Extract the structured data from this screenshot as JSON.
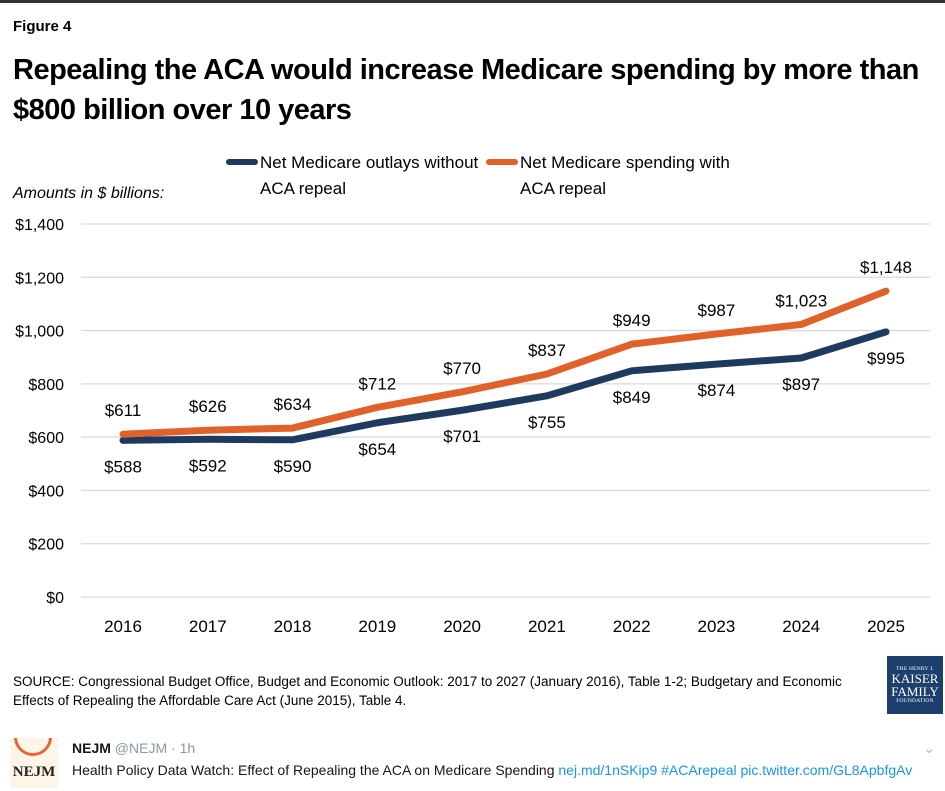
{
  "figure_label": "Figure 4",
  "title": "Repealing the ACA would increase Medicare spending by more than $800 billion over 10 years",
  "units_label": "Amounts in $ billions:",
  "legend": [
    {
      "label": "Net Medicare outlays without ACA repeal",
      "color": "#1f3a5f"
    },
    {
      "label": "Net Medicare spending with ACA repeal",
      "color": "#e0622a"
    }
  ],
  "chart_data": {
    "type": "line",
    "title": "Repealing the ACA would increase Medicare spending by more than $800 billion over 10 years",
    "xlabel": "",
    "ylabel": "Amounts in $ billions",
    "categories": [
      "2016",
      "2017",
      "2018",
      "2019",
      "2020",
      "2021",
      "2022",
      "2023",
      "2024",
      "2025"
    ],
    "ylim": [
      0,
      1400
    ],
    "yticks": [
      0,
      200,
      400,
      600,
      800,
      1000,
      1200,
      1400
    ],
    "ytick_labels": [
      "$0",
      "$200",
      "$400",
      "$600",
      "$800",
      "$1,000",
      "$1,200",
      "$1,400"
    ],
    "grid": true,
    "legend_position": "top-center",
    "series": [
      {
        "name": "Net Medicare outlays without ACA repeal",
        "color": "#1f3a5f",
        "values": [
          588,
          592,
          590,
          654,
          701,
          755,
          849,
          874,
          897,
          995
        ],
        "labels": [
          "$588",
          "$592",
          "$590",
          "$654",
          "$701",
          "$755",
          "$849",
          "$874",
          "$897",
          "$995"
        ],
        "label_position": "below"
      },
      {
        "name": "Net Medicare spending with ACA repeal",
        "color": "#e0622a",
        "values": [
          611,
          626,
          634,
          712,
          770,
          837,
          949,
          987,
          1023,
          1148
        ],
        "labels": [
          "$611",
          "$626",
          "$634",
          "$712",
          "$770",
          "$837",
          "$949",
          "$987",
          "$1,023",
          "$1,148"
        ],
        "label_position": "above"
      }
    ]
  },
  "source": "SOURCE: Congressional Budget Office, Budget and Economic Outlook: 2017 to 2027 (January 2016), Table 1-2; Budgetary and Economic Effects of Repealing the Affordable Care Act (June 2015), Table 4.",
  "logo": {
    "line1": "THE HENRY J.",
    "line2": "KAISER",
    "line3": "FAMILY",
    "line4": "FOUNDATION"
  },
  "tweet": {
    "avatar_text": "NEJM",
    "name": "NEJM",
    "handle": "@NEJM",
    "separator": "·",
    "time": "1h",
    "text": "Health Policy Data Watch: Effect of Repealing the ACA on Medicare Spending ",
    "link1": "nej.md/1nSKip9",
    "hashtag": "#ACArepeal",
    "link2": "pic.twitter.com/GL8ApbfgAv",
    "menu_icon": "chevron-down-icon"
  }
}
